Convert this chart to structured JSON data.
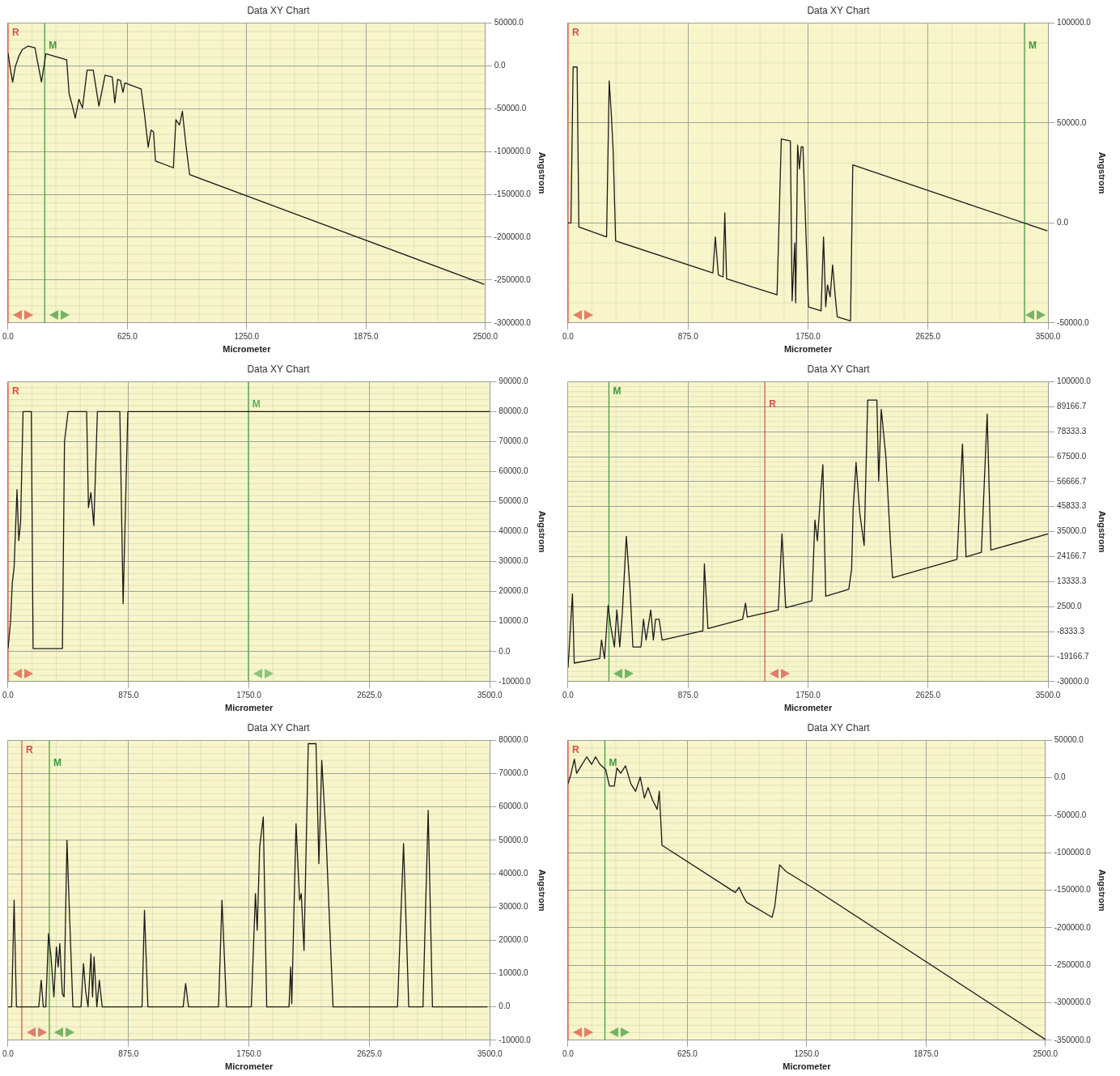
{
  "chart_data": [
    {
      "type": "line",
      "title": "Data XY Chart",
      "xlabel": "Micrometer",
      "ylabel": "Angstrom",
      "grid": true,
      "xlim": [
        0,
        2500
      ],
      "ylim": [
        -300000,
        50000
      ],
      "xticks": [
        {
          "value": 0,
          "label": "0.0"
        },
        {
          "value": 625,
          "label": "625.0"
        },
        {
          "value": 1250,
          "label": "1250.0"
        },
        {
          "value": 1875,
          "label": "1875.0"
        },
        {
          "value": 2500,
          "label": "2500.0"
        }
      ],
      "yticks": [
        {
          "value": 50000,
          "label": "50000.0"
        },
        {
          "value": 0,
          "label": "0.0"
        },
        {
          "value": -50000,
          "label": "-50000.0"
        },
        {
          "value": -100000,
          "label": "-100000.0"
        },
        {
          "value": -150000,
          "label": "-150000.0"
        },
        {
          "value": -200000,
          "label": "-200000.0"
        },
        {
          "value": -250000,
          "label": "-250000.0"
        },
        {
          "value": -300000,
          "label": "-300000.0"
        }
      ],
      "x": [
        0,
        13,
        24,
        38,
        56,
        75,
        104,
        141,
        156,
        175,
        198,
        307,
        320,
        335,
        352,
        371,
        390,
        414,
        446,
        476,
        508,
        546,
        559,
        574,
        589,
        602,
        612,
        697,
        715,
        734,
        749,
        762,
        772,
        866,
        879,
        898,
        913,
        932,
        951,
        2494
      ],
      "series": [
        {
          "color": "#1a1a1a",
          "values": [
            15000,
            -5000,
            -19000,
            -1000,
            11000,
            19000,
            23000,
            21000,
            3000,
            -19000,
            14000,
            7000,
            -33000,
            -45000,
            -61000,
            -39000,
            -49000,
            -5000,
            -5000,
            -47000,
            -11000,
            -13000,
            -43000,
            -16000,
            -17000,
            -31000,
            -20000,
            -27000,
            -57000,
            -95000,
            -75000,
            -77000,
            -111000,
            -119000,
            -63000,
            -69000,
            -53000,
            -93000,
            -127000,
            -255000
          ]
        }
      ],
      "ref_lines": [
        {
          "axis": "x",
          "value": 0,
          "label": "R",
          "color": "#e04b3c"
        },
        {
          "axis": "x",
          "value": 192,
          "label": "M",
          "color": "#3f9a3a"
        }
      ]
    },
    {
      "type": "line",
      "title": "Data XY Chart",
      "xlabel": "Micrometer",
      "ylabel": "Angstrom",
      "grid": true,
      "xlim": [
        0,
        3500
      ],
      "ylim": [
        -50000,
        100000
      ],
      "xticks": [
        {
          "value": 0,
          "label": "0.0"
        },
        {
          "value": 875,
          "label": "875.0"
        },
        {
          "value": 1750,
          "label": "1750.0"
        },
        {
          "value": 2625,
          "label": "2625.0"
        },
        {
          "value": 3500,
          "label": "3500.0"
        }
      ],
      "yticks": [
        {
          "value": 100000,
          "label": "100000.0"
        },
        {
          "value": 50000,
          "label": "50000.0"
        },
        {
          "value": 0,
          "label": "0.0"
        },
        {
          "value": -50000,
          "label": "-50000.0"
        }
      ],
      "x": [
        0,
        21,
        37,
        66,
        79,
        281,
        300,
        315,
        329,
        347,
        1056,
        1074,
        1096,
        1130,
        1143,
        1156,
        1524,
        1555,
        1621,
        1634,
        1653,
        1660,
        1674,
        1687,
        1700,
        1713,
        1753,
        1845,
        1863,
        1879,
        1892,
        1911,
        1929,
        1950,
        1963,
        2060,
        2076,
        3495
      ],
      "series": [
        {
          "color": "#1a1a1a",
          "values": [
            0,
            0,
            78000,
            78000,
            -2000,
            -7000,
            71000,
            55000,
            36000,
            -9000,
            -25000,
            -7000,
            -26000,
            -27000,
            5000,
            -28000,
            -36000,
            42000,
            41000,
            -39000,
            -10000,
            -40000,
            39000,
            27000,
            38000,
            38000,
            -42000,
            -44000,
            -7000,
            -42000,
            -31000,
            -37000,
            -21000,
            -38000,
            -47000,
            -49000,
            29000,
            -4000
          ]
        }
      ],
      "ref_lines": [
        {
          "axis": "x",
          "value": 0,
          "label": "R",
          "color": "#e04b3c"
        },
        {
          "axis": "x",
          "value": 3329,
          "label": "M",
          "color": "#3f9a3a"
        }
      ]
    },
    {
      "type": "line",
      "title": "Data XY Chart",
      "xlabel": "Micrometer",
      "ylabel": "Angstrom",
      "grid": true,
      "xlim": [
        0,
        3500
      ],
      "ylim": [
        -10000,
        90000
      ],
      "xticks": [
        {
          "value": 0,
          "label": "0.0"
        },
        {
          "value": 875,
          "label": "875.0"
        },
        {
          "value": 1750,
          "label": "1750.0"
        },
        {
          "value": 2625,
          "label": "2625.0"
        },
        {
          "value": 3500,
          "label": "3500.0"
        }
      ],
      "yticks": [
        {
          "value": 90000,
          "label": "90000.0"
        },
        {
          "value": 80000,
          "label": "80000.0"
        },
        {
          "value": 70000,
          "label": "70000.0"
        },
        {
          "value": 60000,
          "label": "60000.0"
        },
        {
          "value": 50000,
          "label": "50000.0"
        },
        {
          "value": 40000,
          "label": "40000.0"
        },
        {
          "value": 30000,
          "label": "30000.0"
        },
        {
          "value": 20000,
          "label": "20000.0"
        },
        {
          "value": 10000,
          "label": "10000.0"
        },
        {
          "value": 0,
          "label": "0.0"
        },
        {
          "value": -10000,
          "label": "-10000.0"
        }
      ],
      "x": [
        0,
        18,
        31,
        44,
        65,
        78,
        91,
        109,
        169,
        182,
        395,
        410,
        436,
        571,
        584,
        602,
        623,
        649,
        812,
        836,
        870,
        3500
      ],
      "series": [
        {
          "color": "#1a1a1a",
          "values": [
            1000,
            10000,
            23000,
            28000,
            54000,
            37000,
            43000,
            80000,
            80000,
            1000,
            1000,
            70000,
            80000,
            80000,
            48000,
            53000,
            42000,
            80000,
            80000,
            16000,
            80000,
            80000
          ]
        }
      ],
      "ref_lines": [
        {
          "axis": "x",
          "value": 0,
          "label": "R",
          "color": "#e04b3c"
        },
        {
          "axis": "x",
          "value": 1745,
          "label": "M",
          "color": "#5fb05a"
        }
      ]
    },
    {
      "type": "line",
      "title": "Data XY Chart",
      "xlabel": "Micrometer",
      "ylabel": "Angstrom",
      "grid": true,
      "xlim": [
        0,
        3500
      ],
      "ylim": [
        -30000,
        100000
      ],
      "xticks": [
        {
          "value": 0,
          "label": "0.0"
        },
        {
          "value": 875,
          "label": "875.0"
        },
        {
          "value": 1750,
          "label": "1750.0"
        },
        {
          "value": 2625,
          "label": "2625.0"
        },
        {
          "value": 3500,
          "label": "3500.0"
        }
      ],
      "yticks": [
        {
          "value": 100000,
          "label": "100000.0"
        },
        {
          "value": 89166.7,
          "label": "89166.7"
        },
        {
          "value": 78333.3,
          "label": "78333.3"
        },
        {
          "value": 67500,
          "label": "67500.0"
        },
        {
          "value": 56666.7,
          "label": "56666.7"
        },
        {
          "value": 45833.3,
          "label": "45833.3"
        },
        {
          "value": 35000,
          "label": "35000.0"
        },
        {
          "value": 24166.7,
          "label": "24166.7"
        },
        {
          "value": 13333.3,
          "label": "13333.3"
        },
        {
          "value": 2500,
          "label": "2500.0"
        },
        {
          "value": -8333.3,
          "label": "-8333.3"
        },
        {
          "value": -19166.7,
          "label": "-19166.7"
        },
        {
          "value": -30000,
          "label": "-30000.0"
        }
      ],
      "x": [
        0,
        32,
        45,
        231,
        244,
        266,
        292,
        311,
        338,
        356,
        377,
        396,
        425,
        452,
        473,
        532,
        550,
        569,
        603,
        622,
        638,
        664,
        686,
        983,
        994,
        1020,
        1273,
        1294,
        1307,
        1533,
        1560,
        1587,
        1778,
        1800,
        1818,
        1845,
        1858,
        1879,
        2047,
        2068,
        2079,
        2100,
        2127,
        2159,
        2185,
        2252,
        2265,
        2284,
        2318,
        2350,
        2366,
        2836,
        2876,
        2902,
        3014,
        3056,
        3083,
        3500
      ],
      "series": [
        {
          "color": "#1a1a1a",
          "values": [
            -24000,
            8000,
            -22000,
            -20000,
            -12000,
            -20000,
            3000,
            -6000,
            -15000,
            1000,
            -15000,
            0,
            33000,
            10000,
            -15000,
            -15000,
            -3000,
            -12000,
            1000,
            -12000,
            -3000,
            -3000,
            -12000,
            -8000,
            21000,
            -7000,
            -3000,
            4000,
            -2000,
            1000,
            34000,
            2000,
            5000,
            40000,
            31000,
            54000,
            64000,
            7000,
            10000,
            19000,
            45000,
            65000,
            43000,
            29000,
            92000,
            92000,
            57000,
            88000,
            67000,
            31000,
            15000,
            23000,
            73000,
            24000,
            26000,
            86000,
            27000,
            34000
          ]
        }
      ],
      "ref_lines": [
        {
          "axis": "x",
          "value": 298,
          "label": "M",
          "color": "#3f9a3a"
        },
        {
          "axis": "x",
          "value": 1435,
          "label": "R",
          "color": "#d0504a"
        }
      ]
    },
    {
      "type": "line",
      "title": "Data XY Chart",
      "xlabel": "Micrometer",
      "ylabel": "Angstrom",
      "grid": true,
      "xlim": [
        0,
        3500
      ],
      "ylim": [
        -10000,
        80000
      ],
      "xticks": [
        {
          "value": 0,
          "label": "0.0"
        },
        {
          "value": 875,
          "label": "875.0"
        },
        {
          "value": 1750,
          "label": "1750.0"
        },
        {
          "value": 2625,
          "label": "2625.0"
        },
        {
          "value": 3500,
          "label": "3500.0"
        }
      ],
      "yticks": [
        {
          "value": 80000,
          "label": "80000.0"
        },
        {
          "value": 70000,
          "label": "70000.0"
        },
        {
          "value": 60000,
          "label": "60000.0"
        },
        {
          "value": 50000,
          "label": "50000.0"
        },
        {
          "value": 40000,
          "label": "40000.0"
        },
        {
          "value": 30000,
          "label": "30000.0"
        },
        {
          "value": 20000,
          "label": "20000.0"
        },
        {
          "value": 10000,
          "label": "10000.0"
        },
        {
          "value": 0,
          "label": "0.0"
        },
        {
          "value": -10000,
          "label": "-10000.0"
        }
      ],
      "x": [
        0,
        26,
        44,
        61,
        223,
        241,
        256,
        274,
        294,
        312,
        333,
        351,
        364,
        376,
        394,
        407,
        428,
        448,
        471,
        530,
        548,
        563,
        581,
        602,
        614,
        625,
        645,
        663,
        684,
        973,
        991,
        1016,
        1272,
        1290,
        1311,
        1529,
        1554,
        1587,
        1767,
        1797,
        1810,
        1828,
        1854,
        1879,
        2041,
        2053,
        2061,
        2092,
        2118,
        2130,
        2150,
        2181,
        2237,
        2258,
        2279,
        2309,
        2361,
        2829,
        2873,
        2911,
        3014,
        3052,
        3083,
        3482
      ],
      "series": [
        {
          "color": "#1a1a1a",
          "values": [
            0,
            0,
            32000,
            0,
            0,
            8000,
            0,
            0,
            22000,
            15000,
            3000,
            18000,
            12000,
            19000,
            4000,
            3000,
            50000,
            26000,
            0,
            0,
            13000,
            5000,
            0,
            16000,
            3000,
            15000,
            0,
            8000,
            0,
            0,
            29000,
            0,
            0,
            7000,
            0,
            0,
            32000,
            0,
            0,
            34000,
            23000,
            48000,
            57000,
            0,
            0,
            12000,
            1000,
            55000,
            32000,
            34000,
            17000,
            79000,
            79000,
            43000,
            74000,
            52000,
            0,
            0,
            49000,
            0,
            0,
            59000,
            0,
            0
          ]
        }
      ],
      "ref_lines": [
        {
          "axis": "x",
          "value": 100,
          "label": "R",
          "color": "#d0504a"
        },
        {
          "axis": "x",
          "value": 300,
          "label": "M",
          "color": "#3f9a3a"
        }
      ]
    },
    {
      "type": "line",
      "title": "Data XY Chart",
      "xlabel": "Micrometer",
      "ylabel": "Angstrom",
      "grid": true,
      "xlim": [
        0,
        2500
      ],
      "ylim": [
        -350000,
        50000
      ],
      "xticks": [
        {
          "value": 0,
          "label": "0.0"
        },
        {
          "value": 625,
          "label": "625.0"
        },
        {
          "value": 1250,
          "label": "1250.0"
        },
        {
          "value": 1875,
          "label": "1875.0"
        },
        {
          "value": 2500,
          "label": "2500.0"
        }
      ],
      "yticks": [
        {
          "value": 50000,
          "label": "50000.0"
        },
        {
          "value": 0,
          "label": "0.0"
        },
        {
          "value": -50000,
          "label": "-50000.0"
        },
        {
          "value": -100000,
          "label": "-100000.0"
        },
        {
          "value": -150000,
          "label": "-150000.0"
        },
        {
          "value": -200000,
          "label": "-200000.0"
        },
        {
          "value": -250000,
          "label": "-250000.0"
        },
        {
          "value": -300000,
          "label": "-300000.0"
        },
        {
          "value": -350000,
          "label": "-350000.0"
        }
      ],
      "x": [
        0,
        14,
        33,
        45,
        69,
        98,
        124,
        144,
        167,
        197,
        217,
        242,
        256,
        276,
        301,
        329,
        354,
        378,
        400,
        419,
        443,
        467,
        478,
        492,
        876,
        896,
        915,
        935,
        1069,
        1083,
        1108,
        1142,
        1289,
        2500
      ],
      "series": [
        {
          "color": "#1a1a1a",
          "values": [
            -8000,
            4000,
            25000,
            6000,
            16000,
            28000,
            18000,
            28000,
            18000,
            11000,
            -11000,
            -11000,
            13000,
            6000,
            16000,
            -8000,
            -18000,
            1000,
            -27000,
            -13000,
            -30000,
            -42000,
            -18000,
            -90000,
            -153000,
            -146000,
            -157000,
            -166000,
            -186000,
            -171000,
            -116000,
            -125000,
            -148000,
            -349000
          ]
        }
      ],
      "ref_lines": [
        {
          "axis": "x",
          "value": 0,
          "label": "R",
          "color": "#e04b3c"
        },
        {
          "axis": "x",
          "value": 193,
          "label": "M",
          "color": "#3f9a3a"
        }
      ]
    }
  ]
}
